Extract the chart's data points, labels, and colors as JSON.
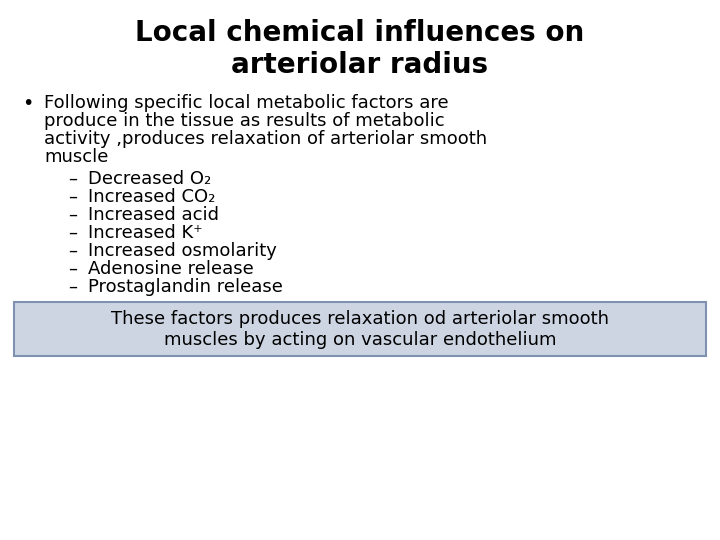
{
  "title_line1": "Local chemical influences on",
  "title_line2": "arteriolar radius",
  "bullet_lines": [
    "Following specific local metabolic factors are",
    "produce in the tissue as results of metabolic",
    "activity ,produces relaxation of arteriolar smooth",
    "muscle"
  ],
  "sub_bullets": [
    "Decreased O₂",
    "Increased CO₂",
    "Increased acid",
    "Increased K⁺",
    "Increased osmolarity",
    "Adenosine release",
    "Prostaglandin release"
  ],
  "footer_line1": "These factors produces relaxation od arteriolar smooth",
  "footer_line2": "muscles by acting on vascular endothelium",
  "bg_color": "#ffffff",
  "title_color": "#000000",
  "body_color": "#000000",
  "footer_bg": "#cdd5e3",
  "footer_border": "#8090b0",
  "title_fontsize": 20,
  "body_fontsize": 13,
  "sub_fontsize": 13,
  "footer_fontsize": 13
}
